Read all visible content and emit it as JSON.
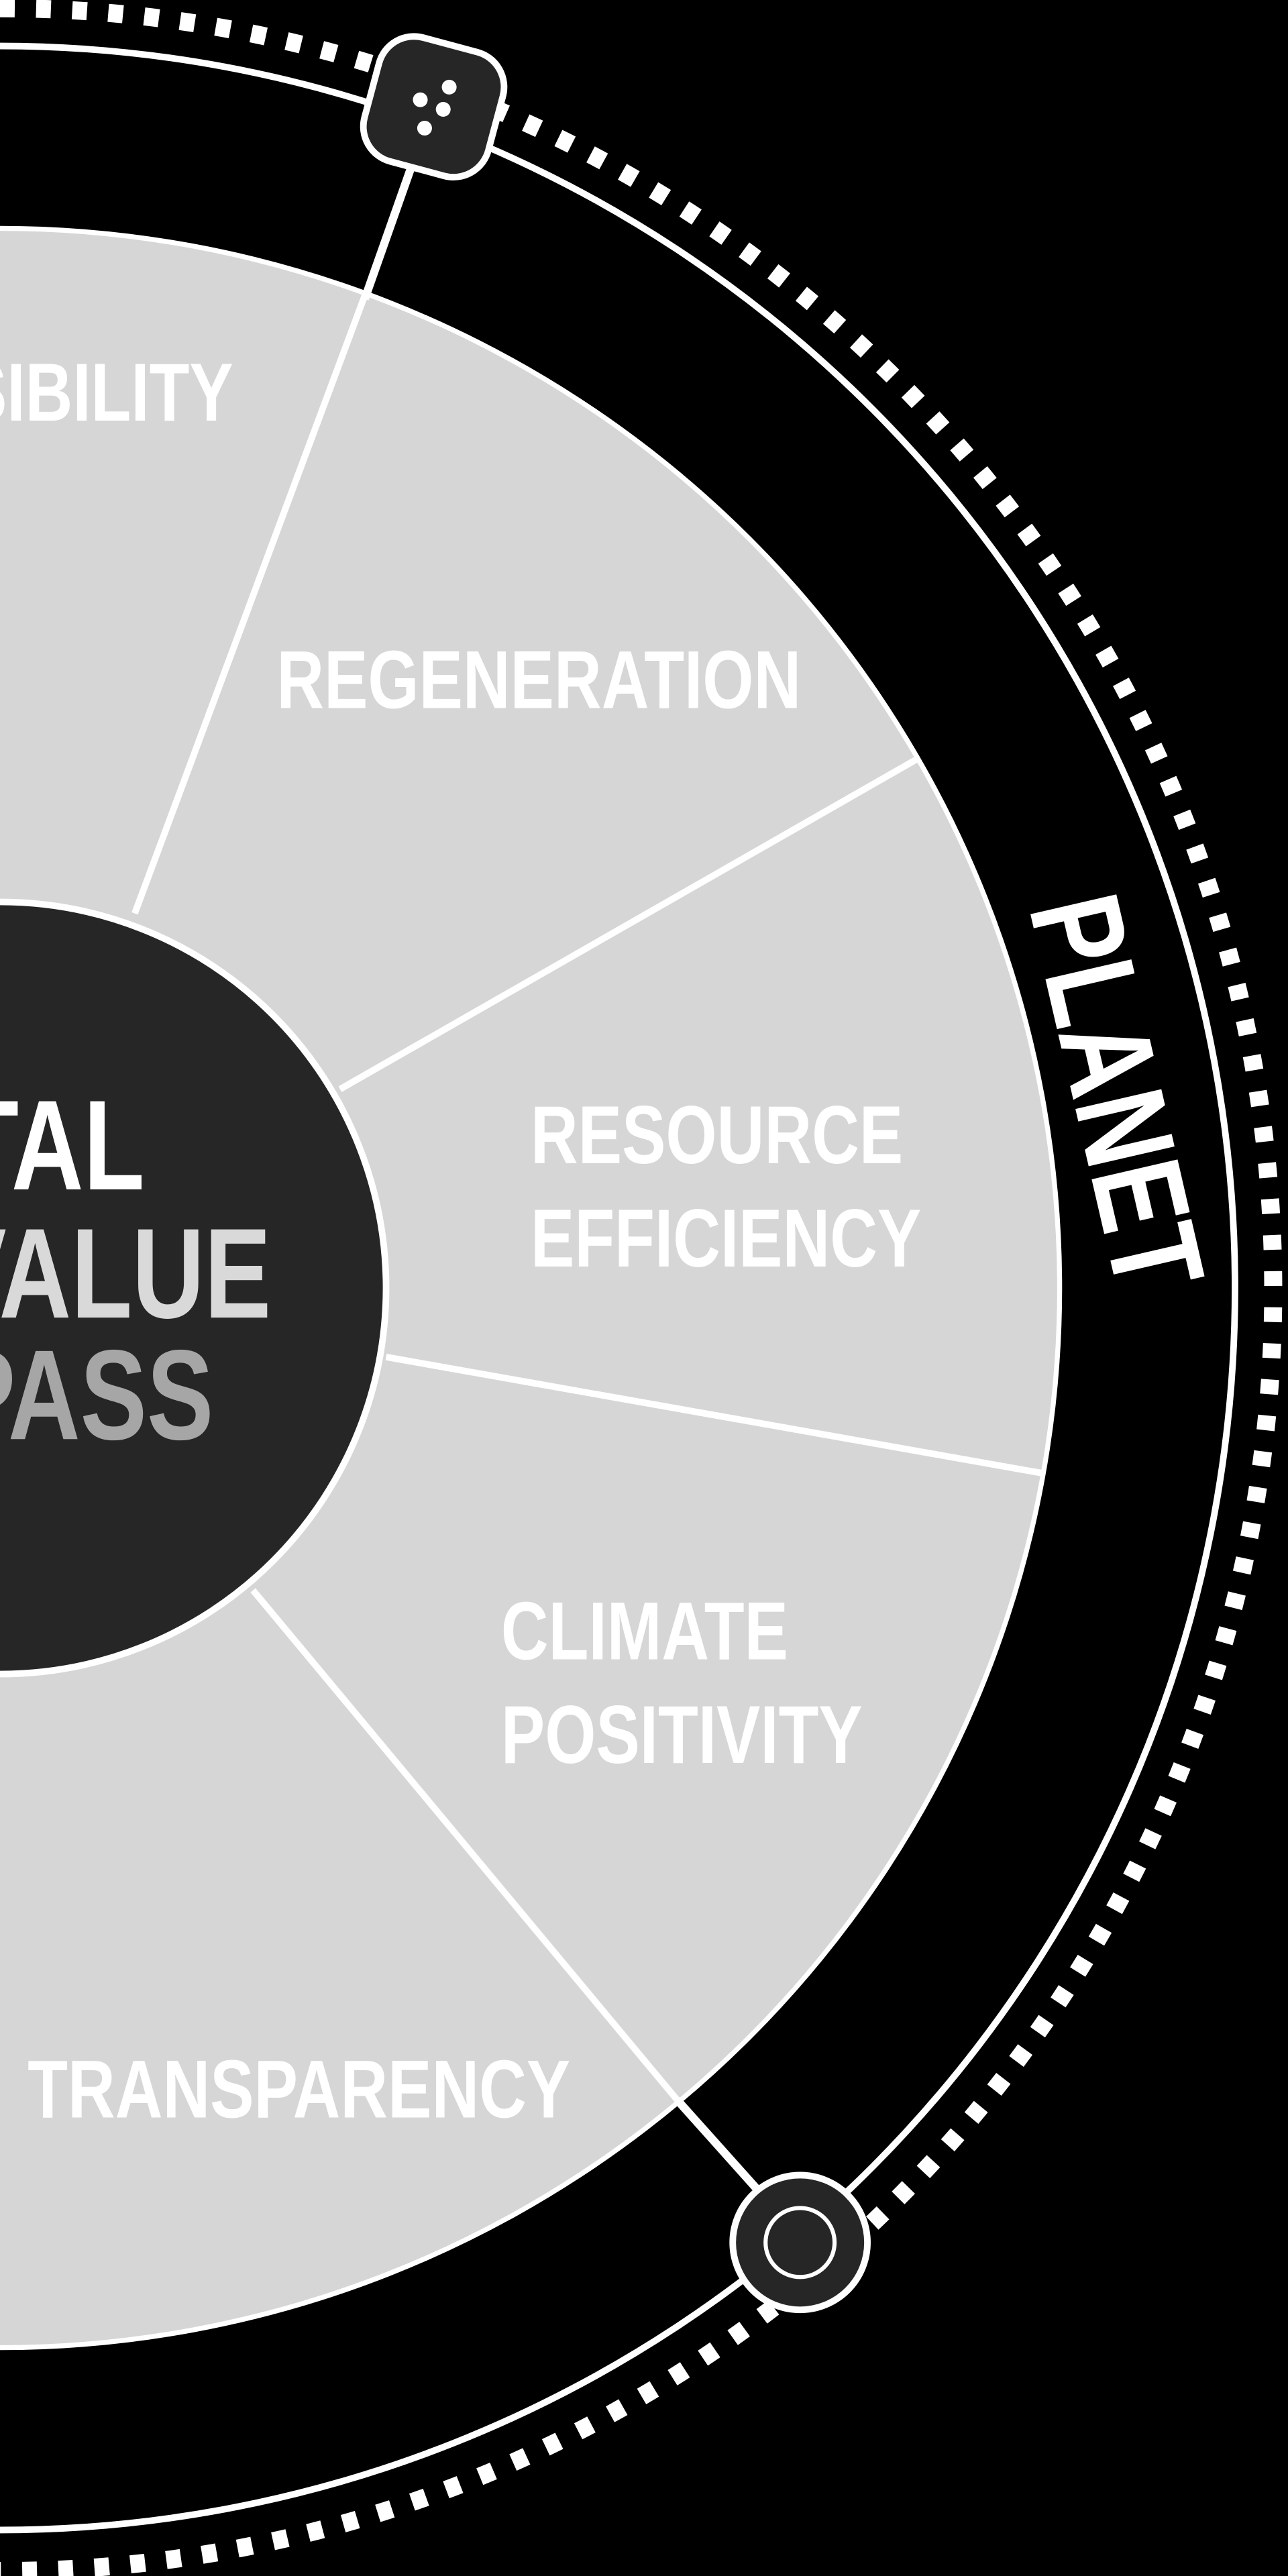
{
  "colors": {
    "background": "#000000",
    "wedge": "#d6d6d6",
    "hub": "#262626",
    "outline": "#ffffff",
    "label": "#ffffff",
    "hub_line1": "#ffffff",
    "hub_line2": "#d9d9d9",
    "hub_line3": "#a6a6a6",
    "planet_label": "#ffffff"
  },
  "hub": {
    "line1": "TAL",
    "line2": "VALUE",
    "line3": "PASS"
  },
  "segments": [
    {
      "id": "responsibility",
      "lines": [
        "SIBILITY"
      ]
    },
    {
      "id": "regeneration",
      "lines": [
        "REGENERATION"
      ]
    },
    {
      "id": "resource-efficiency",
      "lines": [
        "RESOURCE",
        "EFFICIENCY"
      ]
    },
    {
      "id": "climate-positivity",
      "lines": [
        "CLIMATE",
        "POSITIVITY"
      ]
    },
    {
      "id": "transparency",
      "lines": [
        "TRANSPARENCY"
      ]
    }
  ],
  "ring": {
    "label": "PLANET"
  },
  "nodes": [
    {
      "id": "dice",
      "icon": "dice-icon"
    },
    {
      "id": "target",
      "icon": "target-icon"
    }
  ]
}
